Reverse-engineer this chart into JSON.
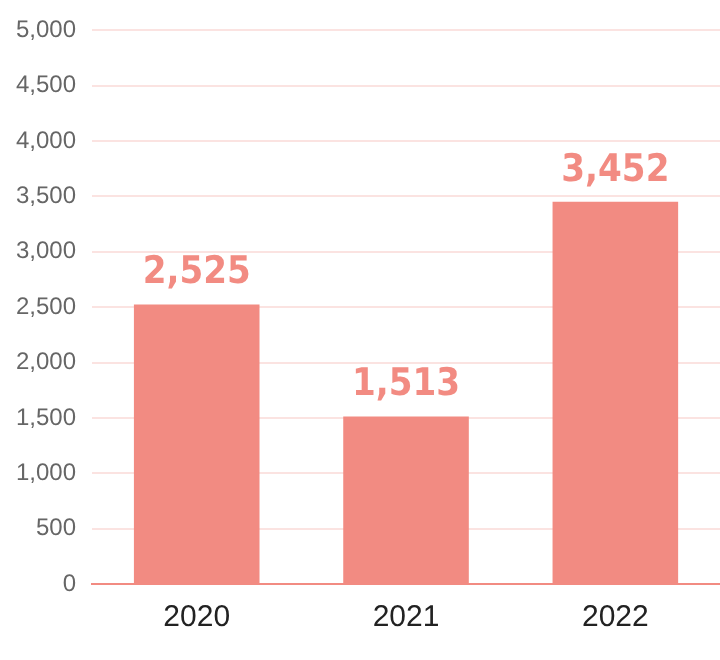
{
  "chart_data": {
    "type": "bar",
    "categories": [
      "2020",
      "2021",
      "2022"
    ],
    "values": [
      2525,
      1513,
      3452
    ],
    "color": "#f28b82",
    "value_labels": [
      "2,525",
      "1,513",
      "3,452"
    ],
    "grid": "y",
    "ylim": [
      0,
      5000
    ],
    "yticks": [
      0,
      500,
      {
        "value": 1000,
        "label": "1,000"
      },
      {
        "value": 1500,
        "label": "1,500"
      },
      {
        "value": 2000,
        "label": "2,000"
      },
      {
        "value": 2500,
        "label": "2,500"
      },
      {
        "value": 3000,
        "label": "3,000"
      },
      {
        "value": 3500,
        "label": "3,500"
      },
      {
        "value": 4000,
        "label": "4,000"
      },
      {
        "value": 4500,
        "label": "4,500"
      },
      {
        "value": 5000,
        "label": "5,000"
      }
    ]
  }
}
